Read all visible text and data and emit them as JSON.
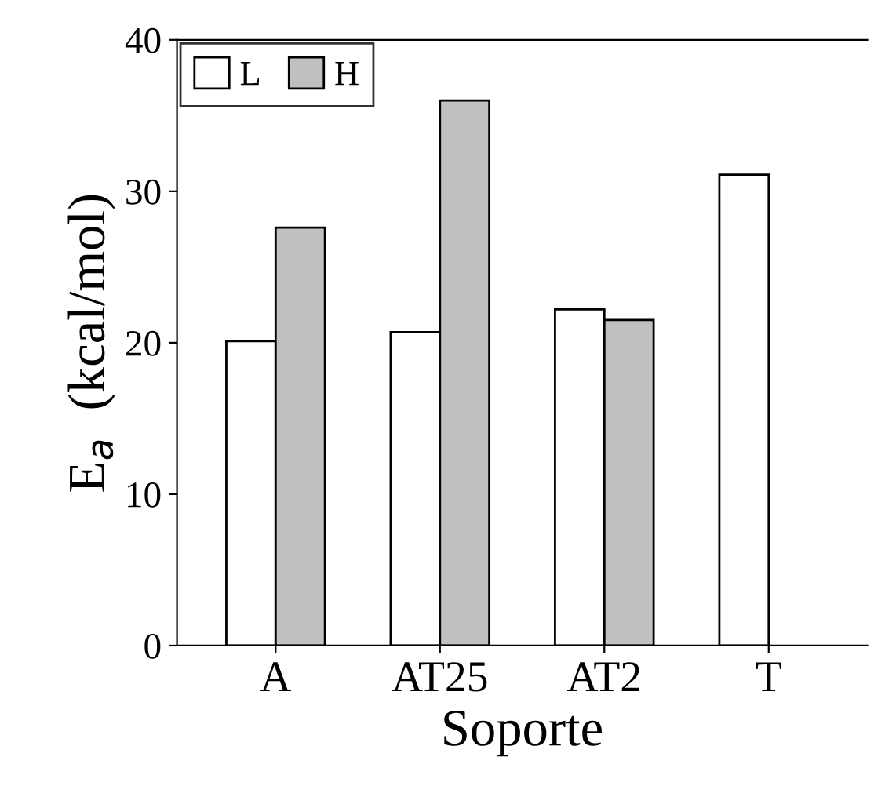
{
  "chart_data": {
    "type": "bar",
    "xlabel": "Soporte",
    "ylabel": "E$_{a}$  (kcal/mol)",
    "categories": [
      "A",
      "AT25",
      "AT2",
      "T"
    ],
    "series": [
      {
        "name": "L",
        "color": "#ffffff",
        "values": [
          20.1,
          20.7,
          22.2,
          31.1
        ]
      },
      {
        "name": "H",
        "color": "#c0c0c0",
        "values": [
          27.6,
          36.0,
          21.5,
          null
        ]
      }
    ],
    "ylim": [
      0,
      40
    ],
    "yticks": [
      0,
      10,
      20,
      30,
      40
    ],
    "grid": false,
    "legend": "top left"
  }
}
